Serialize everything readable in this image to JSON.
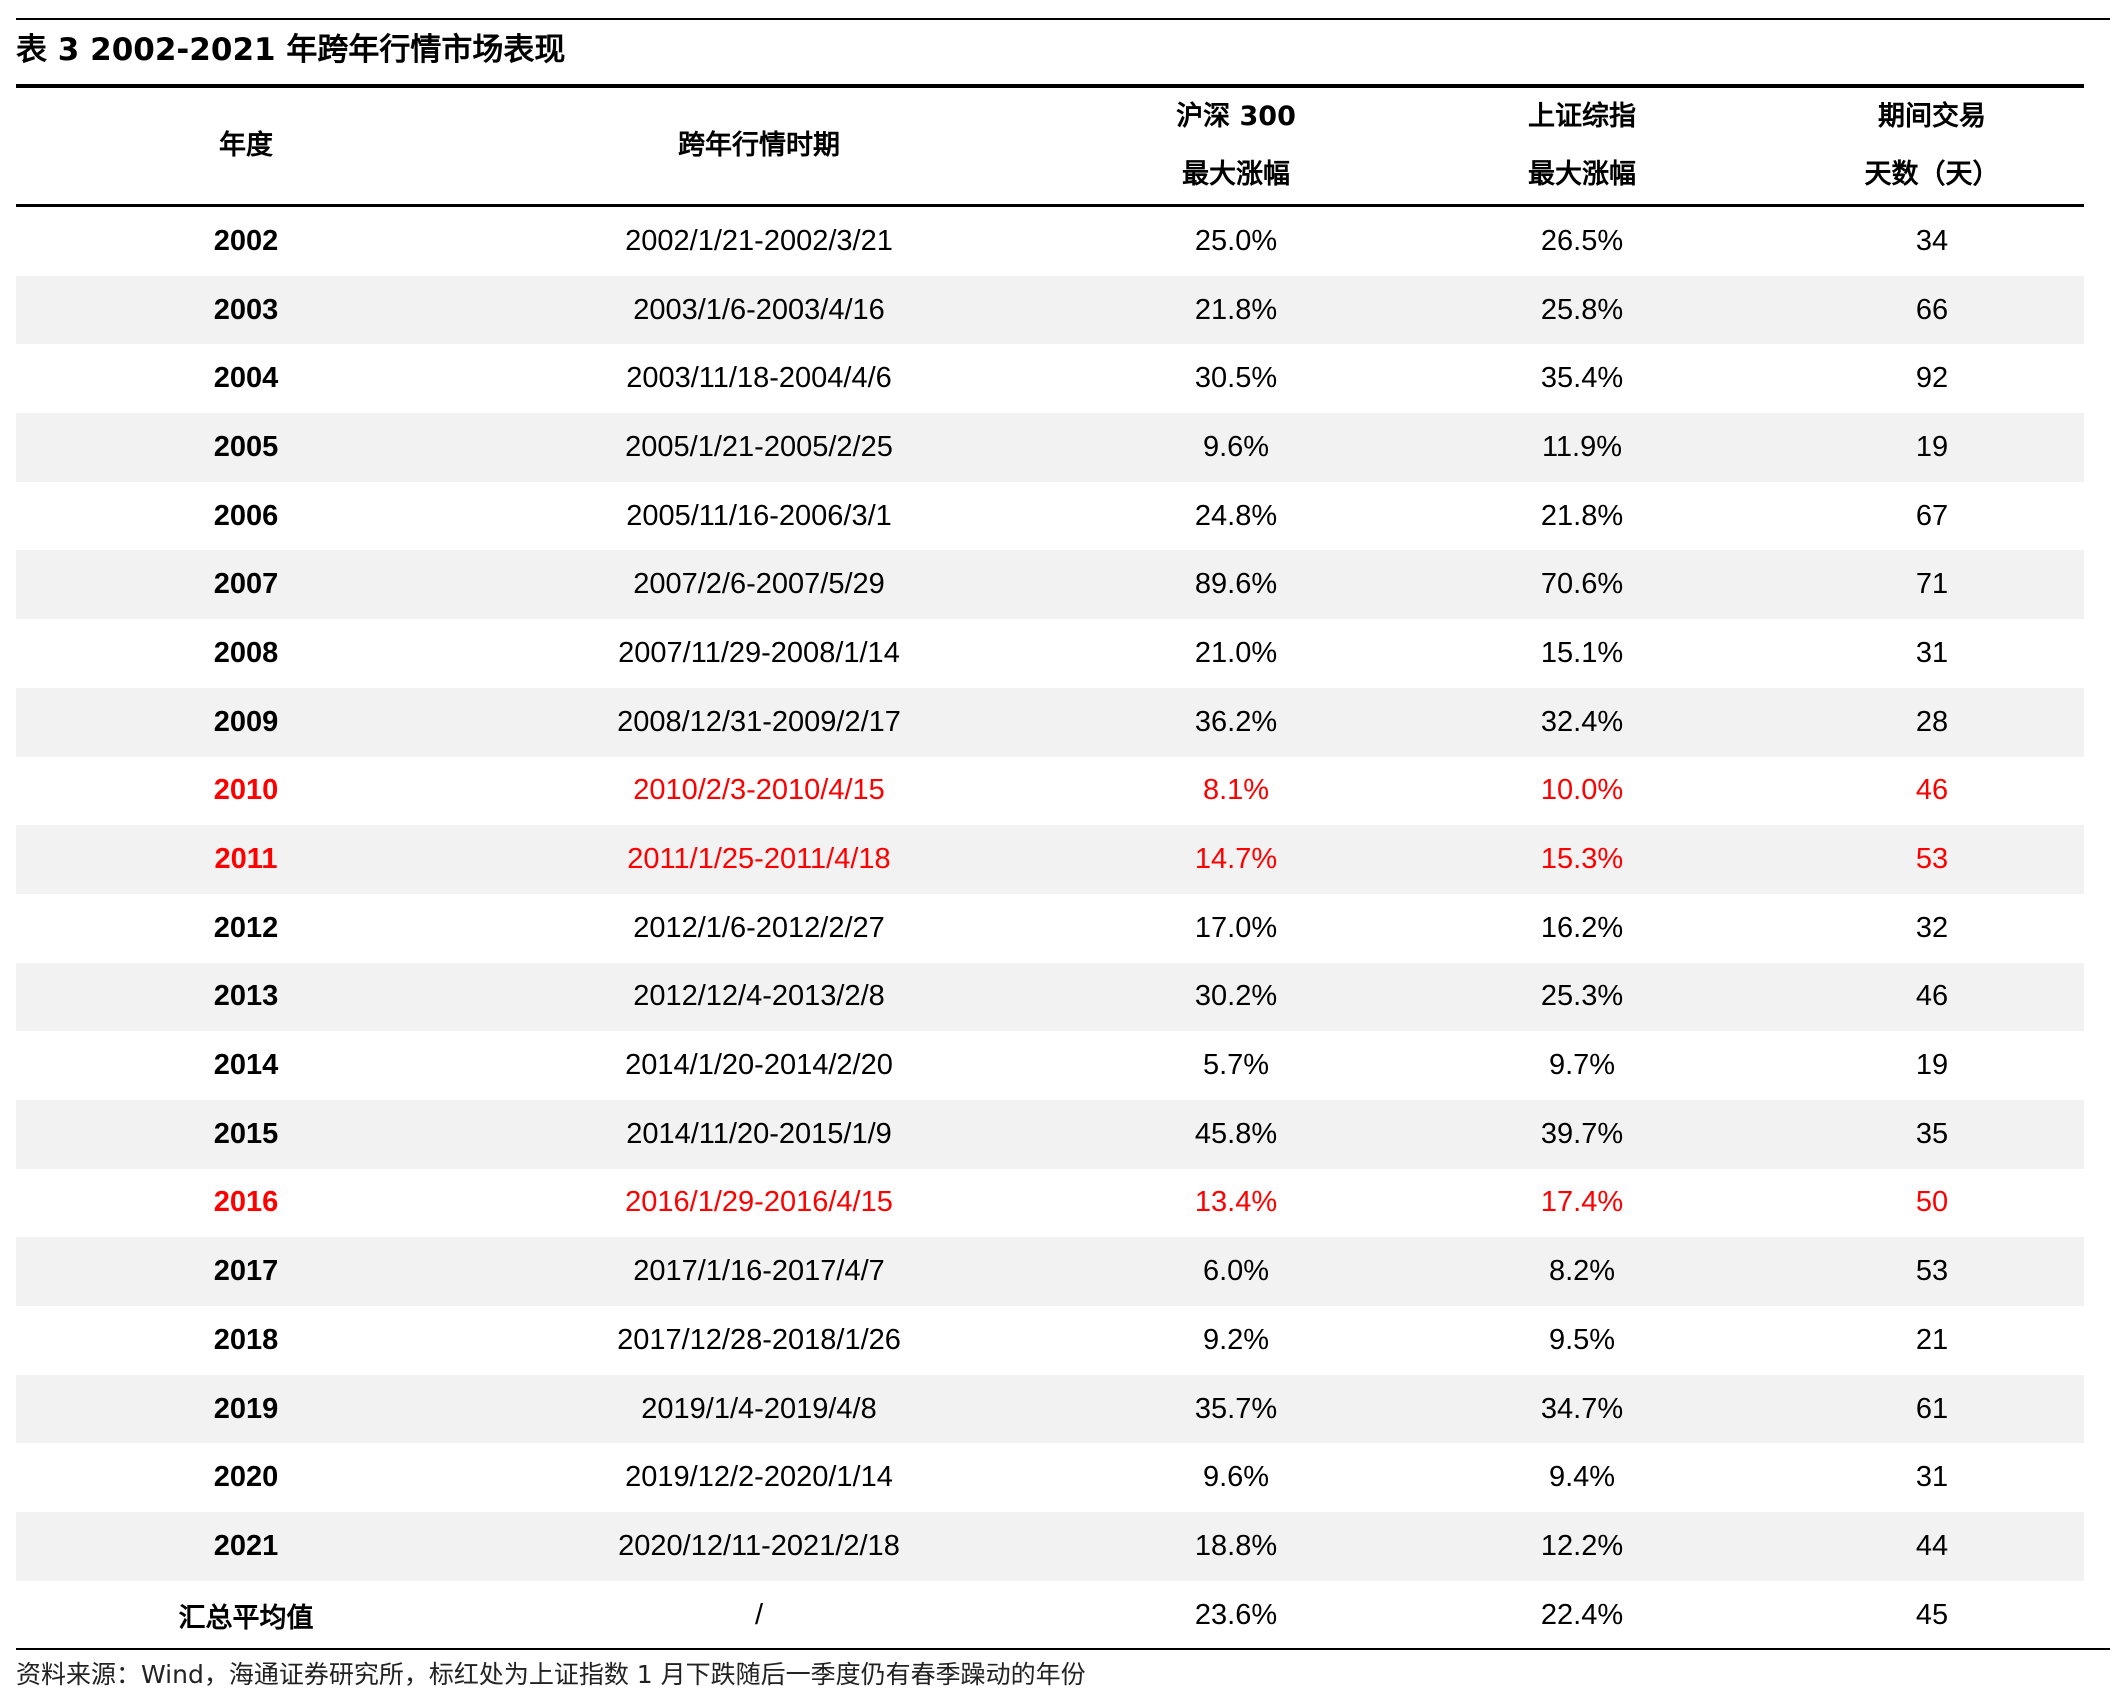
{
  "title": "表 3  2002-2021 年跨年行情市场表现",
  "header": {
    "year": "年度",
    "period": "跨年行情时期",
    "hs300_line1": "沪深 300",
    "hs300_line2": "最大涨幅",
    "szzz_line1": "上证综指",
    "szzz_line2": "最大涨幅",
    "days_line1": "期间交易",
    "days_line2": "天数（天）"
  },
  "rows": [
    {
      "year": "2002",
      "period": "2002/1/21-2002/3/21",
      "hs300": "25.0%",
      "szzz": "26.5%",
      "days": "34",
      "highlight": false
    },
    {
      "year": "2003",
      "period": "2003/1/6-2003/4/16",
      "hs300": "21.8%",
      "szzz": "25.8%",
      "days": "66",
      "highlight": false
    },
    {
      "year": "2004",
      "period": "2003/11/18-2004/4/6",
      "hs300": "30.5%",
      "szzz": "35.4%",
      "days": "92",
      "highlight": false
    },
    {
      "year": "2005",
      "period": "2005/1/21-2005/2/25",
      "hs300": "9.6%",
      "szzz": "11.9%",
      "days": "19",
      "highlight": false
    },
    {
      "year": "2006",
      "period": "2005/11/16-2006/3/1",
      "hs300": "24.8%",
      "szzz": "21.8%",
      "days": "67",
      "highlight": false
    },
    {
      "year": "2007",
      "period": "2007/2/6-2007/5/29",
      "hs300": "89.6%",
      "szzz": "70.6%",
      "days": "71",
      "highlight": false
    },
    {
      "year": "2008",
      "period": "2007/11/29-2008/1/14",
      "hs300": "21.0%",
      "szzz": "15.1%",
      "days": "31",
      "highlight": false
    },
    {
      "year": "2009",
      "period": "2008/12/31-2009/2/17",
      "hs300": "36.2%",
      "szzz": "32.4%",
      "days": "28",
      "highlight": false
    },
    {
      "year": "2010",
      "period": "2010/2/3-2010/4/15",
      "hs300": "8.1%",
      "szzz": "10.0%",
      "days": "46",
      "highlight": true
    },
    {
      "year": "2011",
      "period": "2011/1/25-2011/4/18",
      "hs300": "14.7%",
      "szzz": "15.3%",
      "days": "53",
      "highlight": true
    },
    {
      "year": "2012",
      "period": "2012/1/6-2012/2/27",
      "hs300": "17.0%",
      "szzz": "16.2%",
      "days": "32",
      "highlight": false
    },
    {
      "year": "2013",
      "period": "2012/12/4-2013/2/8",
      "hs300": "30.2%",
      "szzz": "25.3%",
      "days": "46",
      "highlight": false
    },
    {
      "year": "2014",
      "period": "2014/1/20-2014/2/20",
      "hs300": "5.7%",
      "szzz": "9.7%",
      "days": "19",
      "highlight": false
    },
    {
      "year": "2015",
      "period": "2014/11/20-2015/1/9",
      "hs300": "45.8%",
      "szzz": "39.7%",
      "days": "35",
      "highlight": false
    },
    {
      "year": "2016",
      "period": "2016/1/29-2016/4/15",
      "hs300": "13.4%",
      "szzz": "17.4%",
      "days": "50",
      "highlight": true
    },
    {
      "year": "2017",
      "period": "2017/1/16-2017/4/7",
      "hs300": "6.0%",
      "szzz": "8.2%",
      "days": "53",
      "highlight": false
    },
    {
      "year": "2018",
      "period": "2017/12/28-2018/1/26",
      "hs300": "9.2%",
      "szzz": "9.5%",
      "days": "21",
      "highlight": false
    },
    {
      "year": "2019",
      "period": "2019/1/4-2019/4/8",
      "hs300": "35.7%",
      "szzz": "34.7%",
      "days": "61",
      "highlight": false
    },
    {
      "year": "2020",
      "period": "2019/12/2-2020/1/14",
      "hs300": "9.6%",
      "szzz": "9.4%",
      "days": "31",
      "highlight": false
    },
    {
      "year": "2021",
      "period": "2020/12/11-2021/2/18",
      "hs300": "18.8%",
      "szzz": "12.2%",
      "days": "44",
      "highlight": false
    }
  ],
  "summary": {
    "label": "汇总平均值",
    "period": "/",
    "hs300": "23.6%",
    "szzz": "22.4%",
    "days": "45"
  },
  "source": "资料来源：Wind，海通证券研究所，标红处为上证指数 1 月下跌随后一季度仍有春季躁动的年份",
  "colors": {
    "highlight": "#ff0000",
    "shade": "#f2f2f2"
  }
}
